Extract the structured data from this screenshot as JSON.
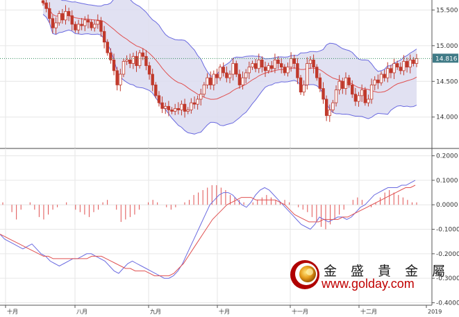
{
  "colors": {
    "candle": "#c0392b",
    "bollinger_band": "#6a6ae0",
    "bollinger_fill": "#dcdcf0",
    "moving_average": "#e05050",
    "macd_line": "#6a6ae0",
    "signal_line": "#e05050",
    "histogram": "#e05050",
    "last_price_badge": "#3f7a86",
    "dotted_line": "#2e8b57"
  },
  "logo": {
    "chinese": "金 盛 貴 金 屬",
    "url": "www.golday.com"
  },
  "chart_data": [
    {
      "type": "candlestick",
      "title": "",
      "last_price_label": "14.816",
      "ylim": [
        13.56,
        15.64
      ],
      "yticks": [
        "15.500",
        "15.000",
        "14.500",
        "14.000"
      ],
      "ytick_values": [
        15.5,
        15.0,
        14.5,
        14.0
      ],
      "xtick_labels": [
        "十月",
        "八月",
        "九月",
        "十月",
        "十一月",
        "十二月",
        "2019"
      ],
      "close": [
        15.6,
        15.52,
        15.38,
        15.25,
        15.32,
        15.45,
        15.36,
        15.48,
        15.42,
        15.3,
        15.22,
        15.3,
        15.28,
        15.36,
        15.33,
        15.25,
        15.3,
        15.35,
        15.2,
        15.05,
        14.9,
        14.8,
        14.65,
        14.45,
        14.6,
        14.78,
        14.8,
        14.75,
        14.85,
        14.72,
        14.9,
        14.85,
        14.72,
        14.6,
        14.45,
        14.3,
        14.2,
        14.12,
        14.15,
        14.1,
        14.08,
        14.12,
        14.1,
        14.18,
        14.08,
        14.1,
        14.2,
        14.18,
        14.25,
        14.32,
        14.45,
        14.55,
        14.45,
        14.6,
        14.55,
        14.7,
        14.62,
        14.55,
        14.6,
        14.75,
        14.6,
        14.45,
        14.55,
        14.62,
        14.7,
        14.75,
        14.68,
        14.8,
        14.7,
        14.65,
        14.72,
        14.68,
        14.8,
        14.75,
        14.7,
        14.62,
        14.7,
        14.82,
        14.75,
        14.55,
        14.35,
        14.45,
        14.75,
        14.8,
        14.7,
        14.55,
        14.4,
        14.25,
        14.02,
        14.1,
        14.2,
        14.38,
        14.5,
        14.4,
        14.55,
        14.45,
        14.32,
        14.22,
        14.3,
        14.38,
        14.2,
        14.25,
        14.45,
        14.52,
        14.48,
        14.6,
        14.55,
        14.68,
        14.62,
        14.75,
        14.7,
        14.65,
        14.78,
        14.7,
        14.8,
        14.75,
        14.82
      ]
    },
    {
      "type": "macd",
      "title": "",
      "ylim": [
        -0.41,
        0.23
      ],
      "yticks": [
        "0.2000",
        "0.1000",
        "0.0000",
        "-0.1000",
        "-0.2000",
        "-0.3000",
        "-0.4000"
      ],
      "ytick_values": [
        0.2,
        0.1,
        0.0,
        -0.1,
        -0.2,
        -0.3,
        -0.4
      ],
      "series": [
        {
          "values": [
            -0.12,
            -0.14,
            -0.15,
            -0.16,
            -0.17,
            -0.18,
            -0.17,
            -0.16,
            -0.18,
            -0.2,
            -0.21,
            -0.23,
            -0.24,
            -0.25,
            -0.24,
            -0.23,
            -0.22,
            -0.22,
            -0.21,
            -0.2,
            -0.2,
            -0.21,
            -0.22,
            -0.23,
            -0.25,
            -0.27,
            -0.28,
            -0.26,
            -0.24,
            -0.23,
            -0.24,
            -0.25,
            -0.26,
            -0.27,
            -0.28,
            -0.29,
            -0.3,
            -0.3,
            -0.29,
            -0.27,
            -0.24,
            -0.2,
            -0.16,
            -0.12,
            -0.08,
            -0.04,
            0.0,
            0.02,
            0.04,
            0.05,
            0.05,
            0.04,
            0.02,
            0.0,
            -0.01,
            0.01,
            0.04,
            0.06,
            0.07,
            0.06,
            0.04,
            0.02,
            0.0,
            -0.02,
            -0.04,
            -0.06,
            -0.08,
            -0.09,
            -0.1,
            -0.08,
            -0.05,
            -0.06,
            -0.07,
            -0.06,
            -0.05,
            -0.05,
            -0.06,
            -0.05,
            -0.03,
            -0.01,
            0.0,
            0.02,
            0.04,
            0.05,
            0.06,
            0.07,
            0.07,
            0.07,
            0.08,
            0.08,
            0.09,
            0.1
          ]
        },
        {
          "values": [
            -0.12,
            -0.13,
            -0.14,
            -0.15,
            -0.16,
            -0.17,
            -0.18,
            -0.19,
            -0.2,
            -0.21,
            -0.21,
            -0.22,
            -0.22,
            -0.22,
            -0.22,
            -0.22,
            -0.22,
            -0.22,
            -0.22,
            -0.21,
            -0.21,
            -0.21,
            -0.22,
            -0.23,
            -0.24,
            -0.25,
            -0.26,
            -0.26,
            -0.27,
            -0.27,
            -0.27,
            -0.28,
            -0.29,
            -0.29,
            -0.29,
            -0.29,
            -0.28,
            -0.26,
            -0.24,
            -0.21,
            -0.18,
            -0.15,
            -0.12,
            -0.09,
            -0.06,
            -0.04,
            -0.02,
            0.0,
            0.01,
            0.02,
            0.03,
            0.03,
            0.03,
            0.02,
            0.02,
            0.02,
            0.02,
            0.02,
            0.01,
            0.0,
            -0.02,
            -0.04,
            -0.05,
            -0.06,
            -0.07,
            -0.07,
            -0.07,
            -0.06,
            -0.06,
            -0.06,
            -0.06,
            -0.05,
            -0.05,
            -0.04,
            -0.03,
            -0.02,
            -0.01,
            0.0,
            0.01,
            0.02,
            0.03,
            0.04,
            0.05,
            0.06,
            0.07,
            0.07,
            0.08
          ]
        },
        {
          "type": "bar",
          "values": [
            0.01,
            0.0,
            -0.03,
            -0.06,
            -0.02,
            0.0,
            0.01,
            -0.02,
            -0.05,
            -0.06,
            -0.04,
            -0.02,
            -0.01,
            0.0,
            0.01,
            0.0,
            -0.02,
            -0.03,
            -0.04,
            -0.05,
            -0.03,
            -0.02,
            0.01,
            0.02,
            0.0,
            -0.02,
            -0.07,
            -0.06,
            -0.05,
            -0.04,
            -0.02,
            0.0,
            0.01,
            0.02,
            0.01,
            0.0,
            -0.01,
            -0.02,
            -0.01,
            0.0,
            0.01,
            0.02,
            0.04,
            0.05,
            0.06,
            0.07,
            0.08,
            0.08,
            0.07,
            0.06,
            0.04,
            0.03,
            0.02,
            0.01,
            0.0,
            0.01,
            0.02,
            0.03,
            0.04,
            0.03,
            0.02,
            0.01,
            0.02,
            0.01,
            0.0,
            -0.01,
            -0.02,
            -0.03,
            -0.05,
            -0.07,
            -0.09,
            -0.1,
            -0.08,
            -0.06,
            -0.04,
            -0.02,
            0.0,
            0.02,
            0.03,
            0.02,
            0.0,
            -0.01,
            0.01,
            0.03,
            0.05,
            0.06,
            0.05,
            0.04,
            0.03,
            0.02,
            0.01,
            0.01
          ]
        }
      ]
    }
  ]
}
